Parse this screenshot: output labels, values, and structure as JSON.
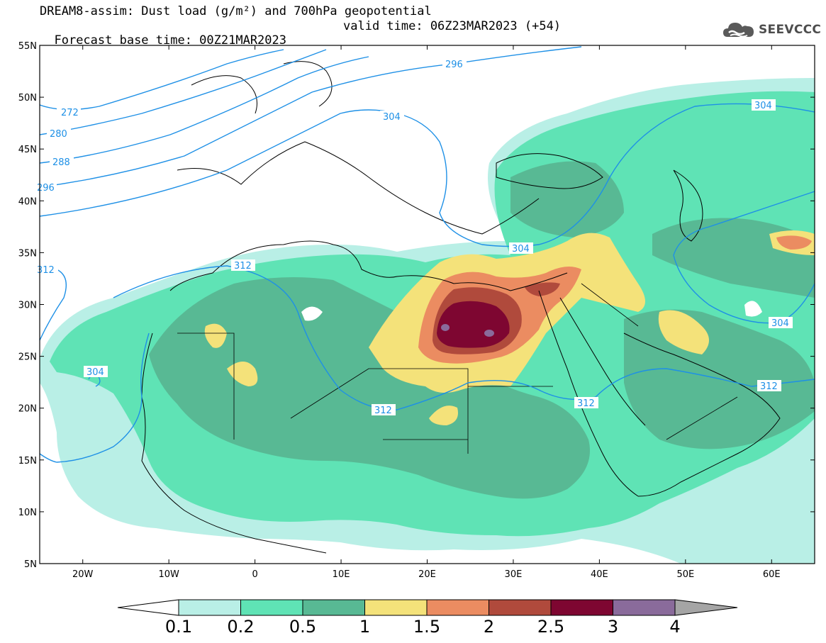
{
  "title": {
    "line1": "DREAM8-assim: Dust load (g/m²) and 700hPa geopotential",
    "base_time": "Forecast base time: 00Z21MAR2023",
    "valid_time": "valid time: 06Z23MAR2023 (+54)"
  },
  "logo": {
    "text": "SEEVCCC",
    "icon": "cloud-icon"
  },
  "map": {
    "lon_range": [
      -25,
      65
    ],
    "lat_range": [
      5,
      55
    ],
    "lat_ticks": [
      "55N",
      "50N",
      "45N",
      "40N",
      "35N",
      "30N",
      "25N",
      "20N",
      "15N",
      "10N",
      "5N"
    ],
    "lon_ticks": [
      "20W",
      "10W",
      "0",
      "10E",
      "20E",
      "30E",
      "40E",
      "50E",
      "60E"
    ],
    "contour_labels": [
      "272",
      "280",
      "288",
      "296",
      "296",
      "304",
      "304",
      "304",
      "304",
      "304",
      "312",
      "312",
      "312",
      "312",
      "312"
    ],
    "contour_color": "#1e90e6"
  },
  "colorbar": {
    "labels": [
      "0.1",
      "0.2",
      "0.5",
      "1",
      "1.5",
      "2",
      "2.5",
      "3",
      "4"
    ],
    "colors": [
      "#ffffff",
      "#b9efe6",
      "#5fe3b5",
      "#58b994",
      "#f4e27a",
      "#eb8c61",
      "#b04a3c",
      "#7e0631",
      "#8a6b9b",
      "#a5a5a5"
    ]
  }
}
